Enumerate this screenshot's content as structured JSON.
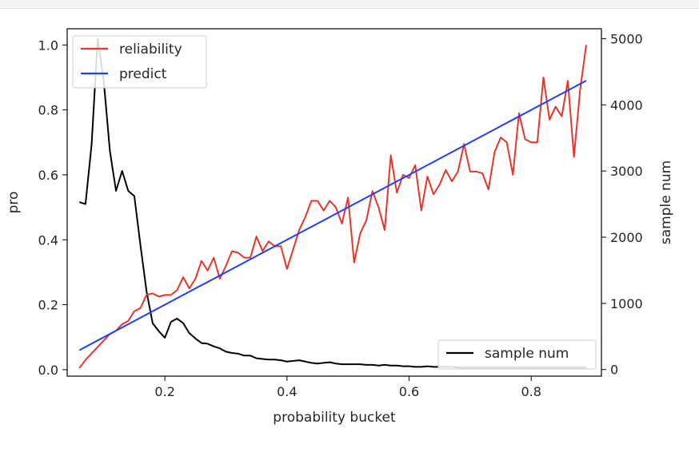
{
  "chart_data": {
    "type": "line",
    "title": "",
    "xlabel": "probability bucket",
    "ylabel": "pro",
    "y2label": "sample num",
    "xlim": [
      0.04,
      0.915
    ],
    "ylim": [
      -0.02,
      1.05
    ],
    "y2lim": [
      -100,
      5150
    ],
    "x_ticks": [
      0.2,
      0.4,
      0.6,
      0.8
    ],
    "x_tick_labels": [
      "0.2",
      "0.4",
      "0.6",
      "0.8"
    ],
    "y_ticks": [
      0.0,
      0.2,
      0.4,
      0.6,
      0.8,
      1.0
    ],
    "y_tick_labels": [
      "0.0",
      "0.2",
      "0.4",
      "0.6",
      "0.8",
      "1.0"
    ],
    "y2_ticks": [
      0,
      1000,
      2000,
      3000,
      4000,
      5000
    ],
    "y2_tick_labels": [
      "0",
      "1000",
      "2000",
      "3000",
      "4000",
      "5000"
    ],
    "grid": false,
    "legend_primary": "top-left",
    "legend_secondary": "bottom-right",
    "series": [
      {
        "name": "reliability",
        "axis": "left",
        "color": "#e8352b",
        "x": [
          0.06,
          0.07,
          0.08,
          0.09,
          0.1,
          0.11,
          0.12,
          0.13,
          0.14,
          0.15,
          0.16,
          0.17,
          0.18,
          0.19,
          0.2,
          0.21,
          0.22,
          0.23,
          0.24,
          0.25,
          0.26,
          0.27,
          0.28,
          0.29,
          0.3,
          0.31,
          0.32,
          0.33,
          0.34,
          0.35,
          0.36,
          0.37,
          0.38,
          0.39,
          0.4,
          0.41,
          0.42,
          0.43,
          0.44,
          0.45,
          0.46,
          0.47,
          0.48,
          0.49,
          0.5,
          0.51,
          0.52,
          0.53,
          0.54,
          0.55,
          0.56,
          0.57,
          0.58,
          0.59,
          0.6,
          0.61,
          0.62,
          0.63,
          0.64,
          0.65,
          0.66,
          0.67,
          0.68,
          0.69,
          0.7,
          0.71,
          0.72,
          0.73,
          0.74,
          0.75,
          0.76,
          0.77,
          0.78,
          0.79,
          0.8,
          0.81,
          0.82,
          0.83,
          0.84,
          0.85,
          0.86,
          0.87,
          0.88,
          0.89
        ],
        "y": [
          0.005,
          0.03,
          0.05,
          0.07,
          0.09,
          0.11,
          0.12,
          0.14,
          0.15,
          0.18,
          0.19,
          0.23,
          0.235,
          0.225,
          0.23,
          0.23,
          0.245,
          0.285,
          0.25,
          0.28,
          0.335,
          0.305,
          0.345,
          0.28,
          0.32,
          0.365,
          0.36,
          0.345,
          0.345,
          0.41,
          0.365,
          0.395,
          0.38,
          0.38,
          0.31,
          0.37,
          0.43,
          0.47,
          0.52,
          0.52,
          0.49,
          0.52,
          0.5,
          0.45,
          0.53,
          0.33,
          0.42,
          0.46,
          0.55,
          0.5,
          0.43,
          0.66,
          0.545,
          0.6,
          0.59,
          0.63,
          0.49,
          0.595,
          0.54,
          0.57,
          0.615,
          0.58,
          0.61,
          0.695,
          0.61,
          0.61,
          0.605,
          0.555,
          0.67,
          0.715,
          0.7,
          0.6,
          0.79,
          0.71,
          0.7,
          0.7,
          0.9,
          0.77,
          0.81,
          0.78,
          0.89,
          0.655,
          0.86,
          1.0
        ]
      },
      {
        "name": "predict",
        "axis": "left",
        "color": "#1f3fff",
        "x": [
          0.06,
          0.89
        ],
        "y": [
          0.06,
          0.89
        ]
      },
      {
        "name": "sample num",
        "axis": "right",
        "color": "#000000",
        "x": [
          0.06,
          0.07,
          0.08,
          0.09,
          0.1,
          0.11,
          0.12,
          0.13,
          0.14,
          0.15,
          0.16,
          0.17,
          0.18,
          0.19,
          0.2,
          0.21,
          0.22,
          0.23,
          0.24,
          0.25,
          0.26,
          0.27,
          0.28,
          0.29,
          0.3,
          0.31,
          0.32,
          0.33,
          0.34,
          0.35,
          0.36,
          0.37,
          0.38,
          0.39,
          0.4,
          0.41,
          0.42,
          0.43,
          0.44,
          0.45,
          0.46,
          0.47,
          0.48,
          0.49,
          0.5,
          0.51,
          0.52,
          0.53,
          0.54,
          0.55,
          0.56,
          0.57,
          0.58,
          0.59,
          0.6,
          0.61,
          0.62,
          0.63,
          0.64,
          0.65,
          0.66,
          0.67,
          0.68,
          0.69,
          0.7,
          0.71,
          0.72,
          0.73,
          0.74,
          0.75,
          0.76,
          0.77,
          0.78,
          0.79,
          0.8,
          0.81,
          0.82,
          0.83,
          0.84,
          0.85,
          0.86,
          0.87,
          0.88,
          0.89
        ],
        "y": [
          2530,
          2500,
          3400,
          5000,
          4350,
          3300,
          2700,
          3000,
          2700,
          2620,
          1880,
          1180,
          700,
          580,
          480,
          720,
          770,
          700,
          550,
          470,
          400,
          390,
          350,
          320,
          270,
          250,
          240,
          210,
          210,
          170,
          160,
          150,
          150,
          140,
          120,
          130,
          140,
          120,
          100,
          90,
          100,
          110,
          90,
          80,
          80,
          80,
          80,
          70,
          70,
          60,
          70,
          60,
          60,
          50,
          50,
          40,
          40,
          50,
          40,
          40,
          40,
          40,
          30,
          30,
          30,
          30,
          30,
          30,
          30,
          30,
          30,
          30,
          30,
          30,
          30,
          30,
          30,
          30,
          30,
          30,
          30,
          30,
          30,
          30
        ]
      }
    ]
  }
}
